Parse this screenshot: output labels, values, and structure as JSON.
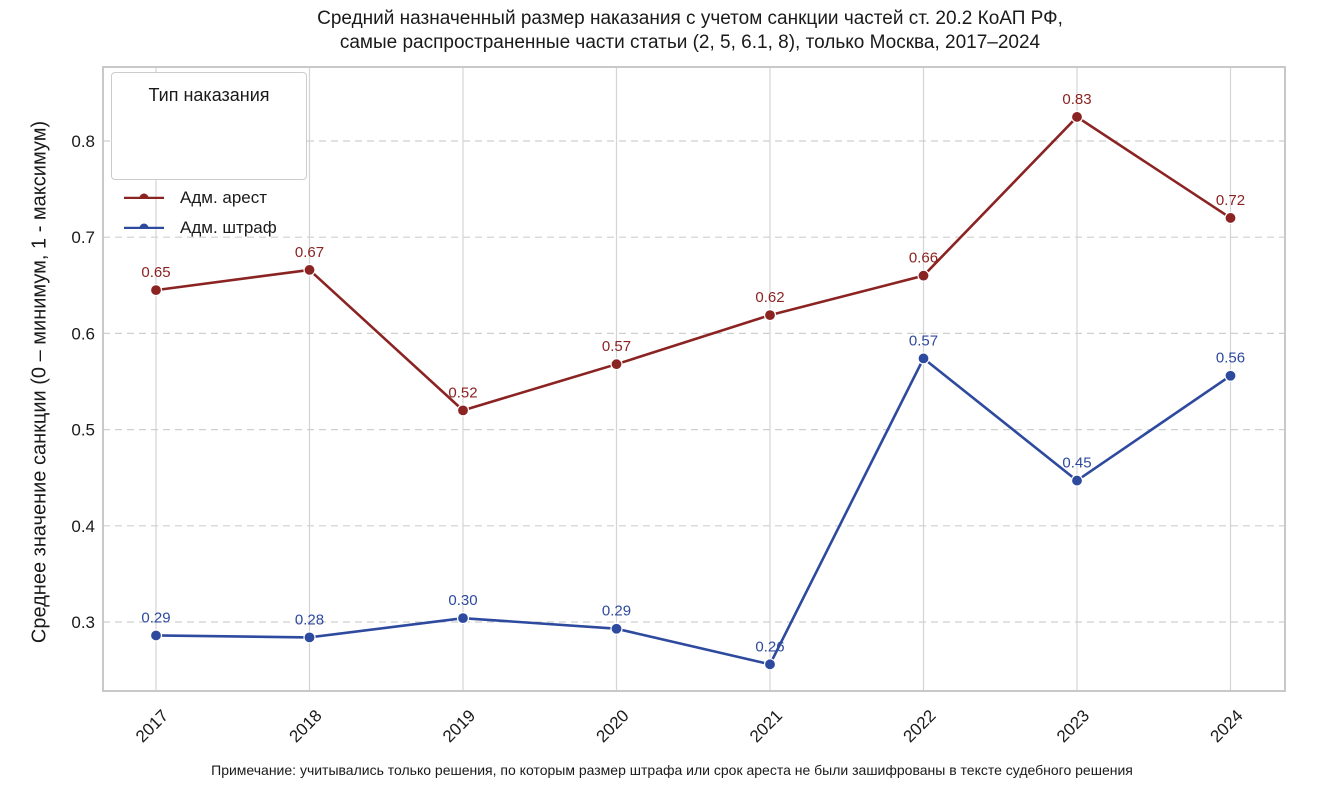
{
  "title_line1": "Средний назначенный размер наказания с учетом санкции частей ст. 20.2 КоАП РФ,",
  "title_line2": "самые распространенные части статьи (2, 5, 6.1, 8), только Москва, 2017–2024",
  "ylabel": "Среднее значение санкции (0 – минимум, 1 - максимум)",
  "note": "Примечание: учитывались только решения, по которым размер штрафа или срок ареста не были зашифрованы в тексте судебного решения",
  "legend_title": "Тип наказания",
  "chart_data": {
    "type": "line",
    "title": "Средний назначенный размер наказания с учетом санкции частей ст. 20.2 КоАП РФ, самые распространенные части статьи (2, 5, 6.1, 8), только Москва, 2017–2024",
    "xlabel": "",
    "ylabel": "Среднее значение санкции (0 – минимум, 1 - максимум)",
    "categories": [
      "2017",
      "2018",
      "2019",
      "2020",
      "2021",
      "2022",
      "2023",
      "2024"
    ],
    "ylim": [
      0.235,
      0.87
    ],
    "yticks": [
      0.3,
      0.4,
      0.5,
      0.6,
      0.7,
      0.8
    ],
    "ytick_labels": [
      "0.3",
      "0.4",
      "0.5",
      "0.6",
      "0.7",
      "0.8"
    ],
    "grid": true,
    "legend_position": "top-left",
    "series": [
      {
        "name": "Адм. арест",
        "color": "#8b2323",
        "values": [
          0.645,
          0.666,
          0.52,
          0.568,
          0.619,
          0.66,
          0.825,
          0.72
        ],
        "labels": [
          "0.65",
          "0.67",
          "0.52",
          "0.57",
          "0.62",
          "0.66",
          "0.83",
          "0.72"
        ]
      },
      {
        "name": "Адм. штраф",
        "color": "#2e4a9e",
        "values": [
          0.286,
          0.284,
          0.304,
          0.293,
          0.256,
          0.574,
          0.447,
          0.556
        ],
        "labels": [
          "0.29",
          "0.28",
          "0.30",
          "0.29",
          "0.26",
          "0.57",
          "0.45",
          "0.56"
        ]
      }
    ]
  }
}
